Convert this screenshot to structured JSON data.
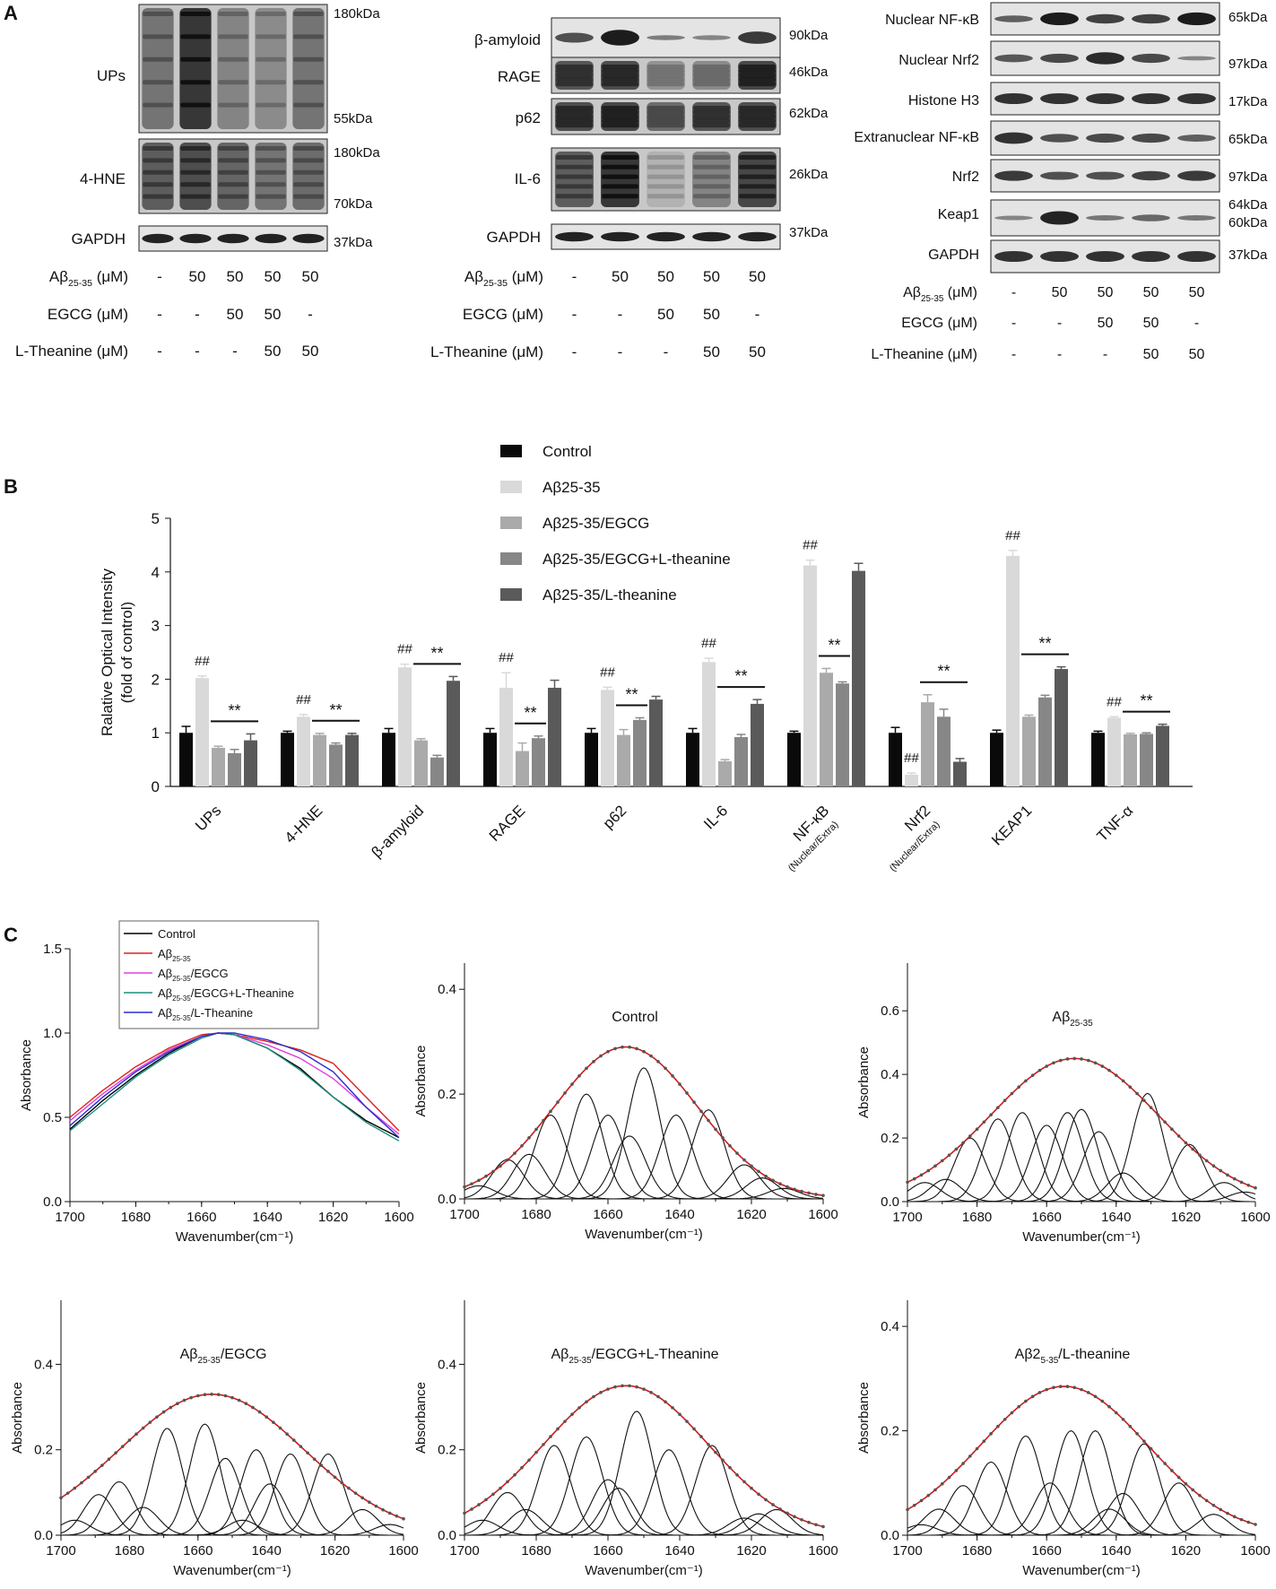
{
  "panel_a": {
    "label": "A",
    "blot1": {
      "proteins": [
        "UPs",
        "4-HNE",
        "GAPDH"
      ],
      "kda": [
        "180kDa",
        "55kDa",
        "180kDa",
        "70kDa",
        "37kDa"
      ],
      "treatments": [
        {
          "name": "Aβ25-35 (μM)",
          "base": "Aβ",
          "sub": "25-35",
          "unit": "(μM)",
          "values": [
            "-",
            "50",
            "50",
            "50",
            "50"
          ]
        },
        {
          "name": "EGCG (μM)",
          "values": [
            "-",
            "-",
            "50",
            "50",
            "-"
          ]
        },
        {
          "name": "L-Theanine (μM)",
          "values": [
            "-",
            "-",
            "-",
            "50",
            "50"
          ]
        }
      ]
    },
    "blot2": {
      "proteins": [
        "β-amyloid",
        "RAGE",
        "p62",
        "IL-6",
        "GAPDH"
      ],
      "kda": [
        "90kDa",
        "46kDa",
        "62kDa",
        "26kDa",
        "37kDa"
      ],
      "treatments": [
        {
          "name": "Aβ25-35 (μM)",
          "base": "Aβ",
          "sub": "25-35",
          "unit": "(μM)",
          "values": [
            "-",
            "50",
            "50",
            "50",
            "50"
          ]
        },
        {
          "name": "EGCG (μM)",
          "values": [
            "-",
            "-",
            "50",
            "50",
            "-"
          ]
        },
        {
          "name": "L-Theanine (μM)",
          "values": [
            "-",
            "-",
            "-",
            "50",
            "50"
          ]
        }
      ]
    },
    "blot3": {
      "proteins": [
        "Nuclear NF-κB",
        "Nuclear Nrf2",
        "Histone H3",
        "Extranuclear NF-κB",
        "Nrf2",
        "Keap1",
        "GAPDH"
      ],
      "kda": [
        "65kDa",
        "97kDa",
        "17kDa",
        "65kDa",
        "97kDa",
        "64kDa",
        "60kDa",
        "37kDa"
      ],
      "treatments": [
        {
          "name": "Aβ25-35 (μM)",
          "base": "Aβ",
          "sub": "25-35",
          "unit": "(μM)",
          "values": [
            "-",
            "50",
            "50",
            "50",
            "50"
          ]
        },
        {
          "name": "EGCG (μM)",
          "values": [
            "-",
            "-",
            "50",
            "50",
            "-"
          ]
        },
        {
          "name": "L-Theanine (μM)",
          "values": [
            "-",
            "-",
            "-",
            "50",
            "50"
          ]
        }
      ]
    }
  },
  "chart_data": [
    {
      "id": "B",
      "panel_label": "B",
      "type": "bar",
      "title": "",
      "xlabel": "",
      "ylabel": "Ralative Optical Intensity",
      "ylabel2": "(fold of control)",
      "ylim": [
        0,
        5
      ],
      "yticks": [
        "0",
        "1",
        "2",
        "3",
        "4",
        "5"
      ],
      "categories": [
        "UPs",
        "4-HNE",
        "β-amyloid",
        "RAGE",
        "p62",
        "IL-6",
        "NF-κB",
        "Nrf2",
        "KEAP1",
        "TNF-α"
      ],
      "category_sublabels": [
        "",
        "",
        "",
        "",
        "",
        "",
        "(Nuclear/Extra)",
        "(Nuclear/Extra)",
        "",
        ""
      ],
      "series": [
        {
          "name": "Control",
          "color": "#0a0a0a",
          "values": [
            1.0,
            1.0,
            1.0,
            1.0,
            1.0,
            1.0,
            1.0,
            1.0,
            1.0,
            1.0
          ],
          "errors": [
            0.12,
            0.03,
            0.08,
            0.08,
            0.08,
            0.08,
            0.03,
            0.1,
            0.05,
            0.03
          ]
        },
        {
          "name": "Aβ25-35",
          "color": "#d9d9d9",
          "values": [
            2.02,
            1.3,
            2.22,
            1.84,
            1.8,
            2.32,
            4.12,
            0.22,
            4.3,
            1.28
          ],
          "errors": [
            0.04,
            0.04,
            0.06,
            0.28,
            0.05,
            0.07,
            0.1,
            0.03,
            0.1,
            0.02
          ]
        },
        {
          "name": "Aβ25-35/EGCG",
          "color": "#aaaaaa",
          "values": [
            0.72,
            0.96,
            0.86,
            0.66,
            0.96,
            0.47,
            2.12,
            1.57,
            1.3,
            0.97
          ],
          "errors": [
            0.03,
            0.03,
            0.03,
            0.15,
            0.1,
            0.03,
            0.08,
            0.14,
            0.03,
            0.02
          ]
        },
        {
          "name": "Aβ25-35/EGCG+L-theanine",
          "color": "#878787",
          "values": [
            0.62,
            0.78,
            0.54,
            0.9,
            1.24,
            0.92,
            1.92,
            1.3,
            1.66,
            0.98
          ],
          "errors": [
            0.07,
            0.03,
            0.04,
            0.04,
            0.04,
            0.05,
            0.03,
            0.14,
            0.04,
            0.02
          ]
        },
        {
          "name": "Aβ25-35/L-theanine",
          "color": "#5a5a5a",
          "values": [
            0.86,
            0.96,
            1.97,
            1.84,
            1.62,
            1.54,
            4.02,
            0.46,
            2.19,
            1.13
          ],
          "errors": [
            0.12,
            0.03,
            0.08,
            0.14,
            0.06,
            0.08,
            0.14,
            0.06,
            0.04,
            0.03
          ]
        }
      ],
      "annotations": {
        "hash": "##",
        "star": "**",
        "hash_groups": [
          0,
          1,
          2,
          3,
          4,
          5,
          6,
          7,
          8,
          9
        ],
        "star_ranges": [
          [
            2,
            4
          ],
          [
            2,
            4
          ],
          [
            2,
            4
          ],
          [
            2,
            3
          ],
          [
            2,
            3
          ],
          [
            2,
            4
          ],
          [
            2,
            3
          ],
          [
            2,
            4
          ],
          [
            2,
            4
          ],
          [
            2,
            4
          ]
        ]
      }
    },
    {
      "id": "C1",
      "panel_label": "C",
      "type": "line",
      "title": "",
      "xlabel": "Wavenumber(cm⁻¹)",
      "ylabel": "Absorbance",
      "xlim": [
        1700,
        1600
      ],
      "ylim": [
        0,
        1.5
      ],
      "xticks": [
        1700,
        1680,
        1660,
        1640,
        1620,
        1600
      ],
      "yticks": [
        0.0,
        0.5,
        1.0,
        1.5
      ],
      "ytick_labels": [
        "0.0",
        "0.5",
        "1.0",
        "1.5"
      ],
      "legend": [
        {
          "base": "Control",
          "sub": "",
          "rest": "",
          "color": "#000000"
        },
        {
          "base": "Aβ",
          "sub": "25-35",
          "rest": "",
          "color": "#e0201c"
        },
        {
          "base": "Aβ",
          "sub": "25-35",
          "rest": "/EGCG",
          "color": "#e040e0"
        },
        {
          "base": "Aβ",
          "sub": "25-35",
          "rest": "/EGCG+L-Theanine",
          "color": "#1f8f7f"
        },
        {
          "base": "Aβ",
          "sub": "25-35",
          "rest": "/L-Theanine",
          "color": "#2a2ad0"
        }
      ],
      "x": [
        1700,
        1690,
        1680,
        1670,
        1660,
        1655,
        1650,
        1640,
        1630,
        1620,
        1610,
        1600
      ],
      "series": [
        {
          "name": "Control",
          "color": "#000000",
          "values": [
            0.43,
            0.6,
            0.75,
            0.88,
            0.98,
            1.0,
            0.99,
            0.91,
            0.79,
            0.62,
            0.48,
            0.38
          ]
        },
        {
          "name": "Aβ25-35",
          "color": "#e0201c",
          "values": [
            0.5,
            0.66,
            0.8,
            0.91,
            0.99,
            1.0,
            0.99,
            0.95,
            0.9,
            0.82,
            0.62,
            0.42
          ]
        },
        {
          "name": "Aβ25-35/EGCG",
          "color": "#e040e0",
          "values": [
            0.48,
            0.64,
            0.78,
            0.9,
            0.98,
            1.0,
            0.99,
            0.93,
            0.85,
            0.73,
            0.56,
            0.4
          ]
        },
        {
          "name": "Aβ25-35/EGCG+L-Theanine",
          "color": "#1f8f7f",
          "values": [
            0.42,
            0.58,
            0.74,
            0.87,
            0.97,
            1.0,
            0.99,
            0.91,
            0.78,
            0.62,
            0.47,
            0.36
          ]
        },
        {
          "name": "Aβ25-35/L-Theanine",
          "color": "#2a2ad0",
          "values": [
            0.45,
            0.62,
            0.77,
            0.89,
            0.98,
            1.0,
            1.0,
            0.96,
            0.89,
            0.77,
            0.56,
            0.38
          ]
        }
      ]
    },
    {
      "id": "C2",
      "type": "line",
      "title": "Control",
      "title_base": "Control",
      "title_sub": "",
      "title_rest": "",
      "xlabel": "Wavenumber(cm⁻¹)",
      "ylabel": "Absorbance",
      "xlim": [
        1700,
        1600
      ],
      "ylim": [
        0,
        0.45
      ],
      "xticks": [
        1700,
        1680,
        1660,
        1640,
        1620,
        1600
      ],
      "yticks": [
        0.0,
        0.2,
        0.4
      ],
      "ytick_labels": [
        "0.0",
        "0.2",
        "0.4"
      ],
      "envelope_peak": 0.29,
      "envelope_center": 1655,
      "envelope_sigma": 20,
      "components": [
        [
          1696,
          0.025
        ],
        [
          1688,
          0.075
        ],
        [
          1682,
          0.085
        ],
        [
          1676,
          0.16
        ],
        [
          1666,
          0.2
        ],
        [
          1660,
          0.16
        ],
        [
          1654,
          0.12
        ],
        [
          1650,
          0.25
        ],
        [
          1641,
          0.16
        ],
        [
          1632,
          0.17
        ],
        [
          1622,
          0.065
        ],
        [
          1617,
          0.04
        ],
        [
          1611,
          0.02
        ]
      ]
    },
    {
      "id": "C3",
      "type": "line",
      "title": "Aβ25-35",
      "title_base": "Aβ",
      "title_sub": "25-35",
      "title_rest": "",
      "xlabel": "Wavenumber(cm⁻¹)",
      "ylabel": "Absorbance",
      "xlim": [
        1700,
        1600
      ],
      "ylim": [
        0,
        0.75
      ],
      "xticks": [
        1700,
        1680,
        1660,
        1640,
        1620,
        1600
      ],
      "yticks": [
        0.0,
        0.2,
        0.4,
        0.6
      ],
      "ytick_labels": [
        "0.0",
        "0.2",
        "0.4",
        "0.6"
      ],
      "envelope_peak": 0.45,
      "envelope_center": 1652,
      "envelope_sigma": 24,
      "components": [
        [
          1695,
          0.06
        ],
        [
          1689,
          0.07
        ],
        [
          1682,
          0.2
        ],
        [
          1674,
          0.26
        ],
        [
          1667,
          0.28
        ],
        [
          1660,
          0.24
        ],
        [
          1654,
          0.28
        ],
        [
          1650,
          0.29
        ],
        [
          1645,
          0.22
        ],
        [
          1638,
          0.09
        ],
        [
          1631,
          0.34
        ],
        [
          1619,
          0.18
        ],
        [
          1609,
          0.06
        ],
        [
          1603,
          0.03
        ]
      ]
    },
    {
      "id": "C4",
      "type": "line",
      "title": "Aβ25-35/EGCG",
      "title_base": "Aβ",
      "title_sub": "25-35",
      "title_rest": "/EGCG",
      "xlabel": "Wavenumber(cm⁻¹)",
      "ylabel": "Absorbance",
      "xlim": [
        1700,
        1600
      ],
      "ylim": [
        0,
        0.55
      ],
      "xticks": [
        1700,
        1680,
        1660,
        1640,
        1620,
        1600
      ],
      "yticks": [
        0.0,
        0.2,
        0.4
      ],
      "ytick_labels": [
        "0.0",
        "0.2",
        "0.4"
      ],
      "envelope_peak": 0.33,
      "envelope_center": 1656,
      "envelope_sigma": 27,
      "components": [
        [
          1696,
          0.035
        ],
        [
          1689,
          0.095
        ],
        [
          1683,
          0.125
        ],
        [
          1676,
          0.065
        ],
        [
          1669,
          0.25
        ],
        [
          1658,
          0.26
        ],
        [
          1652,
          0.18
        ],
        [
          1647,
          0.035
        ],
        [
          1643,
          0.2
        ],
        [
          1639,
          0.12
        ],
        [
          1633,
          0.19
        ],
        [
          1622,
          0.19
        ],
        [
          1612,
          0.06
        ],
        [
          1604,
          0.025
        ]
      ]
    },
    {
      "id": "C5",
      "type": "line",
      "title": "Aβ25-35/EGCG+L-Theanine",
      "title_base": "Aβ",
      "title_sub": "25-35",
      "title_rest": "/EGCG+L-Theanine",
      "xlabel": "Wavenumber(cm⁻¹)",
      "ylabel": "Absorbance",
      "xlim": [
        1700,
        1600
      ],
      "ylim": [
        0,
        0.55
      ],
      "xticks": [
        1700,
        1680,
        1660,
        1640,
        1620,
        1600
      ],
      "yticks": [
        0.0,
        0.2,
        0.4
      ],
      "ytick_labels": [
        "0.0",
        "0.2",
        "0.4"
      ],
      "envelope_peak": 0.35,
      "envelope_center": 1655,
      "envelope_sigma": 23,
      "components": [
        [
          1695,
          0.035
        ],
        [
          1688,
          0.1
        ],
        [
          1683,
          0.06
        ],
        [
          1675,
          0.21
        ],
        [
          1666,
          0.23
        ],
        [
          1660,
          0.13
        ],
        [
          1657,
          0.11
        ],
        [
          1652,
          0.29
        ],
        [
          1643,
          0.2
        ],
        [
          1631,
          0.21
        ],
        [
          1622,
          0.04
        ],
        [
          1618,
          0.05
        ],
        [
          1613,
          0.06
        ]
      ]
    },
    {
      "id": "C6",
      "type": "line",
      "title": "Aβ25-35/L-theanine",
      "title_base": "Aβ2",
      "title_sub": "5-35",
      "title_rest": "/L-theanine",
      "xlabel": "Wavenumber(cm⁻¹)",
      "ylabel": "Absorbance",
      "xlim": [
        1700,
        1600
      ],
      "ylim": [
        0,
        0.45
      ],
      "xticks": [
        1700,
        1680,
        1660,
        1640,
        1620,
        1600
      ],
      "yticks": [
        0.0,
        0.2,
        0.4
      ],
      "ytick_labels": [
        "0.0",
        "0.2",
        "0.4"
      ],
      "envelope_peak": 0.285,
      "envelope_center": 1655,
      "envelope_sigma": 24,
      "components": [
        [
          1696,
          0.02
        ],
        [
          1691,
          0.05
        ],
        [
          1684,
          0.095
        ],
        [
          1676,
          0.14
        ],
        [
          1666,
          0.19
        ],
        [
          1659,
          0.1
        ],
        [
          1653,
          0.2
        ],
        [
          1646,
          0.2
        ],
        [
          1642,
          0.05
        ],
        [
          1638,
          0.08
        ],
        [
          1632,
          0.175
        ],
        [
          1622,
          0.1
        ],
        [
          1612,
          0.04
        ]
      ]
    }
  ]
}
